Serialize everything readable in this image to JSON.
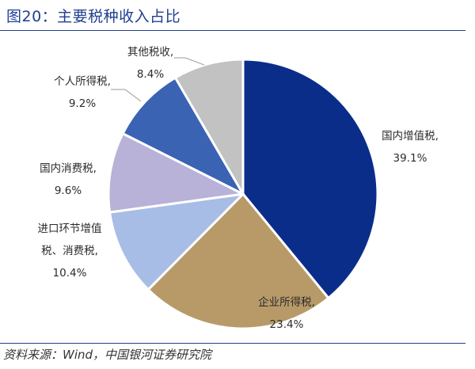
{
  "header": {
    "title": "图20：主要税种收入占比"
  },
  "footer": {
    "source": "资料来源：Wind，中国银河证券研究院"
  },
  "chart_data": {
    "type": "pie",
    "start_angle_deg": 0,
    "direction": "clockwise",
    "slices": [
      {
        "name_lines": [
          "国内增值税,"
        ],
        "value_label": "39.1%",
        "value": 39.1,
        "color": "#0b2d8a"
      },
      {
        "name_lines": [
          "企业所得税,"
        ],
        "value_label": "23.4%",
        "value": 23.4,
        "color": "#b89a69"
      },
      {
        "name_lines": [
          "进口环节增值",
          "税、消费税,"
        ],
        "value_label": "10.4%",
        "value": 10.4,
        "color": "#a8bde5"
      },
      {
        "name_lines": [
          "国内消费税,"
        ],
        "value_label": "9.6%",
        "value": 9.6,
        "color": "#b8b2d8"
      },
      {
        "name_lines": [
          "个人所得税,"
        ],
        "value_label": "9.2%",
        "value": 9.2,
        "color": "#3a63b3"
      },
      {
        "name_lines": [
          "其他税收,"
        ],
        "value_label": "8.4%",
        "value": 8.4,
        "color": "#c2c2c2"
      }
    ]
  }
}
